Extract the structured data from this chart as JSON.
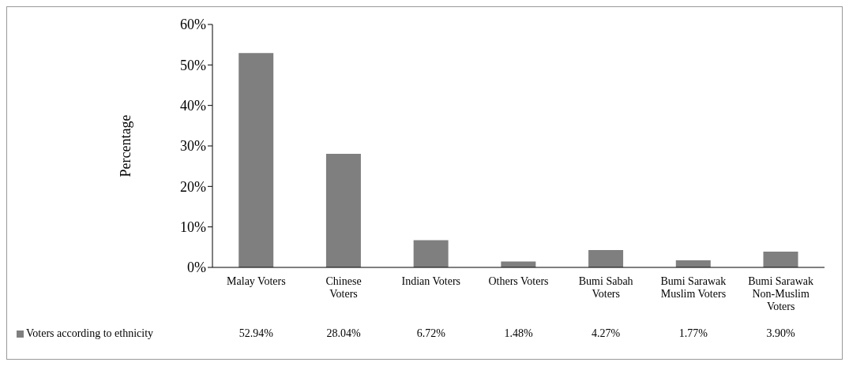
{
  "chart_data": {
    "type": "bar",
    "ylabel": "Percentage",
    "categories": [
      "Malay Voters",
      "Chinese Voters",
      "Indian Voters",
      "Others Voters",
      "Bumi Sabah Voters",
      "Bumi Sarawak Muslim Voters",
      "Bumi Sarawak Non-Muslim Voters"
    ],
    "series": [
      {
        "name": "Voters according to ethnicity",
        "color": "#7f7f7f",
        "values": [
          52.94,
          28.04,
          6.72,
          1.48,
          4.27,
          1.77,
          3.9
        ],
        "value_labels": [
          "52.94%",
          "28.04%",
          "6.72%",
          "1.48%",
          "4.27%",
          "1.77%",
          "3.90%"
        ]
      }
    ],
    "ylim": [
      0,
      60
    ],
    "yticks": [
      {
        "value": 0,
        "label": "0%"
      },
      {
        "value": 10,
        "label": "10%"
      },
      {
        "value": 20,
        "label": "20%"
      },
      {
        "value": 30,
        "label": "30%"
      },
      {
        "value": 40,
        "label": "40%"
      },
      {
        "value": 50,
        "label": "50%"
      },
      {
        "value": 60,
        "label": "60%"
      }
    ],
    "grid": false,
    "legend": "bottom left"
  }
}
